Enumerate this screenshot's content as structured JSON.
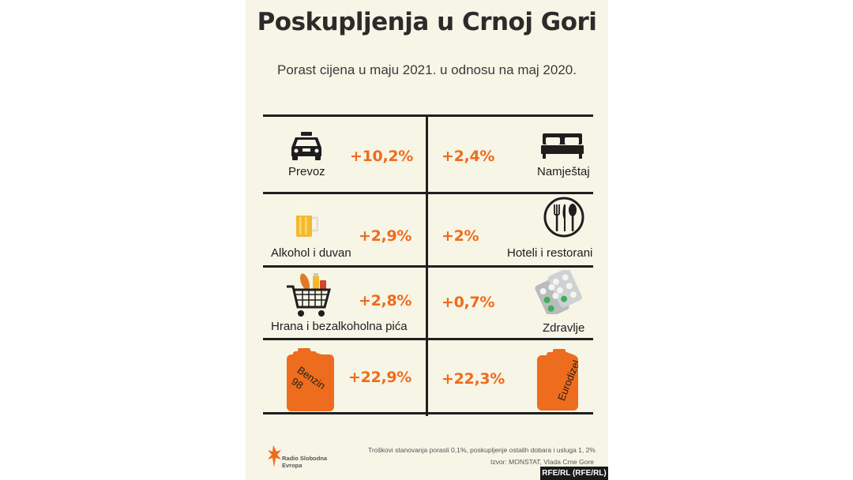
{
  "title": "Poskupljenja u Crnoj Gori",
  "subtitle": "Porast cijena u maju 2021. u odnosu na maj 2020.",
  "colors": {
    "accent": "#ee6c1d",
    "background": "#f6f5e6",
    "text": "#2b2b2b"
  },
  "items": [
    {
      "label": "Prevoz",
      "value": "+10,2%",
      "icon": "taxi-icon"
    },
    {
      "label": "Namještaj",
      "value": "+2,4%",
      "icon": "bed-icon"
    },
    {
      "label": "Alkohol i duvan",
      "value": "+2,9%",
      "icon": "beer-mug-icon"
    },
    {
      "label": "Hoteli i restorani",
      "value": "+2%",
      "icon": "plate-cutlery-icon"
    },
    {
      "label": "Hrana i bezalkoholna pića",
      "value": "+2,8%",
      "icon": "shopping-cart-icon"
    },
    {
      "label": "Zdravlje",
      "value": "+0,7%",
      "icon": "pills-icon"
    },
    {
      "label": "Benzin 98",
      "value": "+22,9%",
      "icon": "jerrycan-icon",
      "can_text": [
        "Benzin",
        "98"
      ]
    },
    {
      "label": "Eurodizel",
      "value": "+22,3%",
      "icon": "jerrycan-icon",
      "can_text": [
        "Eurodizel"
      ]
    }
  ],
  "footnote": "Troškovi stanovanja porasli 0,1%, poskupljenje ostalih dobara i usluga 1, 2%",
  "source": "Izvor: MONSTAT, Vlada Crne Gore",
  "logo_text": [
    "Radio Slobodna",
    "Evropa"
  ],
  "credit": "RFE/RL (RFE/RL)"
}
